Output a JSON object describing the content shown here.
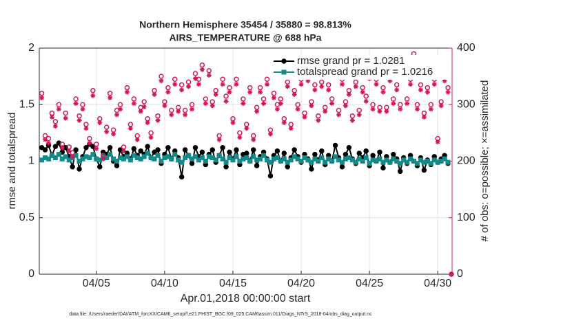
{
  "chart_data": {
    "type": "line",
    "title": "Northern Hemisphere 35454 / 35880 = 98.813%",
    "subtitle": "AIRS_TEMPERATURE @ 688 hPa",
    "xlabel": "Apr.01,2018 00:00:00 start",
    "ylabel": "rmse and totalspread",
    "y2label": "# of obs: o=possible; ×=assimilated",
    "footnote": "data file: /Users/raeder/DAI/ATM_forcXX/CAM6_setup/f.e21.FHIST_BGC.f09_025.CAM6assim.011/Diags_NTrS_2018-04/obs_diag_output.nc",
    "xlim": [
      0.82,
      31.05
    ],
    "xticks": [
      {
        "value": 5,
        "label": "04/05"
      },
      {
        "value": 10,
        "label": "04/10"
      },
      {
        "value": 15,
        "label": "04/15"
      },
      {
        "value": 20,
        "label": "04/20"
      },
      {
        "value": 25,
        "label": "04/25"
      },
      {
        "value": 30,
        "label": "04/30"
      }
    ],
    "ylim": [
      0,
      2
    ],
    "yticks": [
      0,
      0.5,
      1,
      1.5,
      2
    ],
    "y2lim": [
      0,
      400
    ],
    "y2ticks": [
      0,
      100,
      200,
      300,
      400
    ],
    "y2color": "#d0175a",
    "grid": true,
    "legend": "northeast",
    "legend_text_color": "#0b5ef0",
    "x": [
      1,
      1.25,
      1.5,
      1.75,
      2,
      2.25,
      2.5,
      2.75,
      3,
      3.25,
      3.5,
      3.75,
      4,
      4.25,
      4.5,
      4.75,
      5,
      5.25,
      5.5,
      5.75,
      6,
      6.25,
      6.5,
      6.75,
      7,
      7.25,
      7.5,
      7.75,
      8,
      8.25,
      8.5,
      8.75,
      9,
      9.25,
      9.5,
      9.75,
      10,
      10.25,
      10.5,
      10.75,
      11,
      11.25,
      11.5,
      11.75,
      12,
      12.25,
      12.5,
      12.75,
      13,
      13.25,
      13.5,
      13.75,
      14,
      14.25,
      14.5,
      14.75,
      15,
      15.25,
      15.5,
      15.75,
      16,
      16.25,
      16.5,
      16.75,
      17,
      17.25,
      17.5,
      17.75,
      18,
      18.25,
      18.5,
      18.75,
      19,
      19.25,
      19.5,
      19.75,
      20,
      20.25,
      20.5,
      20.75,
      21,
      21.25,
      21.5,
      21.75,
      22,
      22.25,
      22.5,
      22.75,
      23,
      23.25,
      23.5,
      23.75,
      24,
      24.25,
      24.5,
      24.75,
      25,
      25.25,
      25.5,
      25.75,
      26,
      26.25,
      26.5,
      26.75,
      27,
      27.25,
      27.5,
      27.75,
      28,
      28.25,
      28.5,
      28.75,
      29,
      29.25,
      29.5,
      29.75,
      30,
      30.25,
      30.5,
      30.75,
      31
    ],
    "series": [
      {
        "name": "rmse grand pr = 1.0281",
        "color": "#000000",
        "marker": "o",
        "linestyle": "solid",
        "values": [
          1.12,
          1.1,
          1.14,
          1.05,
          1.13,
          1.16,
          1.08,
          1.12,
          1.04,
          0.95,
          1.1,
          0.93,
          1.04,
          1.12,
          1.15,
          1.13,
          1.02,
          0.95,
          1.08,
          1.06,
          1.12,
          1.0,
          0.96,
          1.1,
          1.04,
          1.07,
          1.02,
          1.11,
          1.05,
          1.09,
          1.06,
          1.13,
          1.03,
          1.08,
          1.1,
          0.98,
          1.06,
          1.12,
          1.02,
          1.09,
          1.03,
          0.86,
          1.1,
          1.05,
          0.98,
          1.12,
          1.04,
          1.08,
          0.97,
          1.06,
          1.1,
          0.99,
          1.05,
          1.12,
          0.95,
          1.08,
          1.02,
          1.1,
          0.97,
          1.06,
          1.07,
          1.0,
          1.1,
          0.96,
          1.04,
          1.08,
          1.02,
          0.87,
          1.05,
          1.09,
          1.0,
          1.07,
          0.95,
          1.03,
          1.1,
          1.04,
          0.99,
          1.06,
          1.02,
          0.93,
          1.06,
          1.01,
          1.09,
          0.97,
          1.05,
          1.0,
          1.14,
          1.03,
          0.95,
          1.06,
          1.12,
          1.02,
          0.98,
          1.07,
          1.03,
          1.09,
          0.96,
          1.05,
          1.0,
          1.08,
          0.94,
          1.04,
          0.99,
          1.06,
          1.02,
          0.91,
          1.03,
          0.98,
          1.05,
          1.0,
          0.96,
          1.03,
          0.92,
          1.01,
          0.97,
          1.04,
          0.99,
          1.02,
          1.05,
          0.98,
          null
        ]
      },
      {
        "name": "totalspread grand pr = 1.0216",
        "color": "#138a8a",
        "marker": "s",
        "linestyle": "solid",
        "values": [
          1.01,
          1.03,
          1.02,
          1.05,
          1.03,
          1.06,
          1.02,
          1.04,
          1.01,
          1.03,
          1.05,
          1.0,
          1.02,
          1.04,
          1.03,
          1.06,
          1.02,
          1.01,
          1.04,
          1.03,
          1.06,
          1.02,
          1.0,
          1.03,
          1.02,
          1.04,
          1.01,
          1.05,
          1.03,
          1.02,
          1.04,
          1.07,
          1.03,
          1.02,
          1.05,
          1.0,
          1.03,
          1.04,
          1.02,
          1.06,
          1.01,
          0.99,
          1.03,
          1.05,
          1.02,
          1.04,
          1.01,
          1.03,
          1.0,
          1.04,
          1.03,
          1.01,
          1.05,
          1.02,
          0.99,
          1.03,
          1.01,
          1.04,
          1.0,
          1.02,
          1.03,
          1.0,
          1.04,
          1.01,
          1.02,
          1.05,
          1.01,
          0.99,
          1.02,
          1.03,
          1.0,
          1.02,
          0.99,
          1.01,
          1.04,
          1.02,
          1.0,
          1.03,
          1.01,
          0.99,
          1.02,
          1.0,
          1.03,
          0.99,
          1.02,
          1.0,
          1.04,
          1.01,
          0.99,
          1.02,
          1.03,
          1.01,
          0.99,
          1.02,
          1.0,
          1.03,
          0.98,
          1.01,
          1.0,
          1.02,
          0.99,
          1.01,
          0.99,
          1.02,
          1.0,
          0.98,
          1.01,
          0.99,
          1.02,
          1.0,
          0.98,
          1.01,
          0.99,
          1.0,
          0.98,
          1.01,
          0.99,
          1.0,
          1.02,
          0.99,
          null
        ]
      },
      {
        "color": "#d0175a",
        "marker": "o",
        "linestyle": "none",
        "axis": "y2",
        "values": [
          320,
          245,
          240,
          285,
          270,
          300,
          230,
          285,
          225,
          215,
          310,
          280,
          300,
          265,
          240,
          325,
          230,
          275,
          210,
          260,
          320,
          255,
          290,
          300,
          225,
          330,
          265,
          310,
          245,
          295,
          305,
          275,
          250,
          325,
          280,
          350,
          305,
          330,
          290,
          345,
          295,
          335,
          290,
          340,
          300,
          355,
          345,
          370,
          310,
          360,
          305,
          325,
          245,
          345,
          315,
          330,
          275,
          345,
          250,
          310,
          265,
          330,
          245,
          295,
          330,
          310,
          345,
          255,
          320,
          300,
          310,
          275,
          340,
          265,
          325,
          300,
          345,
          285,
          350,
          305,
          335,
          280,
          340,
          295,
          335,
          310,
          360,
          290,
          345,
          305,
          325,
          280,
          340,
          290,
          330,
          315,
          355,
          300,
          345,
          295,
          330,
          295,
          350,
          310,
          335,
          300,
          360,
          310,
          345,
          390,
          300,
          335,
          285,
          330,
          300,
          345,
          240,
          305,
          350,
          330,
          0
        ]
      },
      {
        "color": "#d0175a",
        "marker": "*",
        "linestyle": "none",
        "axis": "y2",
        "values": [
          312,
          238,
          232,
          278,
          262,
          292,
          224,
          276,
          218,
          208,
          302,
          272,
          292,
          258,
          232,
          316,
          222,
          268,
          204,
          252,
          312,
          248,
          282,
          292,
          218,
          322,
          258,
          302,
          238,
          288,
          296,
          268,
          242,
          318,
          272,
          342,
          298,
          322,
          282,
          336,
          288,
          326,
          282,
          332,
          292,
          346,
          336,
          362,
          302,
          352,
          298,
          318,
          238,
          336,
          306,
          322,
          268,
          336,
          242,
          302,
          258,
          322,
          238,
          288,
          322,
          302,
          336,
          248,
          312,
          292,
          302,
          268,
          332,
          258,
          318,
          292,
          336,
          278,
          342,
          298,
          326,
          272,
          332,
          288,
          326,
          302,
          352,
          282,
          336,
          298,
          318,
          272,
          332,
          282,
          322,
          306,
          346,
          292,
          336,
          288,
          322,
          288,
          342,
          302,
          326,
          292,
          352,
          302,
          336,
          382,
          292,
          326,
          278,
          322,
          292,
          336,
          234,
          298,
          342,
          322,
          0
        ]
      }
    ]
  }
}
